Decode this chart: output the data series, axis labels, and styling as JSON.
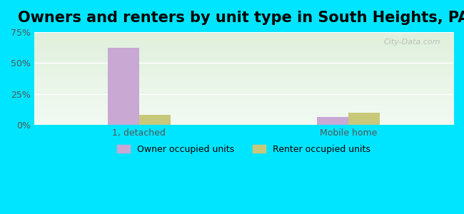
{
  "title": "Owners and renters by unit type in South Heights, PA",
  "categories": [
    "1, detached",
    "Mobile home"
  ],
  "owner_values": [
    62.0,
    6.0
  ],
  "renter_values": [
    8.0,
    10.0
  ],
  "owner_color": "#c9a8d4",
  "renter_color": "#c8c87a",
  "ylim": [
    0,
    75
  ],
  "yticks": [
    0,
    25,
    50,
    75
  ],
  "yticklabels": [
    "0%",
    "25%",
    "50%",
    "75%"
  ],
  "background_outer": "#00e5ff",
  "background_inner_top": "#f2faf2",
  "background_inner_bottom": "#dff0dc",
  "bar_width": 0.3,
  "group_positions": [
    1.0,
    3.0
  ],
  "xlim": [
    0,
    4.0
  ],
  "legend_labels": [
    "Owner occupied units",
    "Renter occupied units"
  ],
  "watermark": "City-Data.com",
  "title_fontsize": 15,
  "tick_fontsize": 9,
  "legend_fontsize": 9
}
